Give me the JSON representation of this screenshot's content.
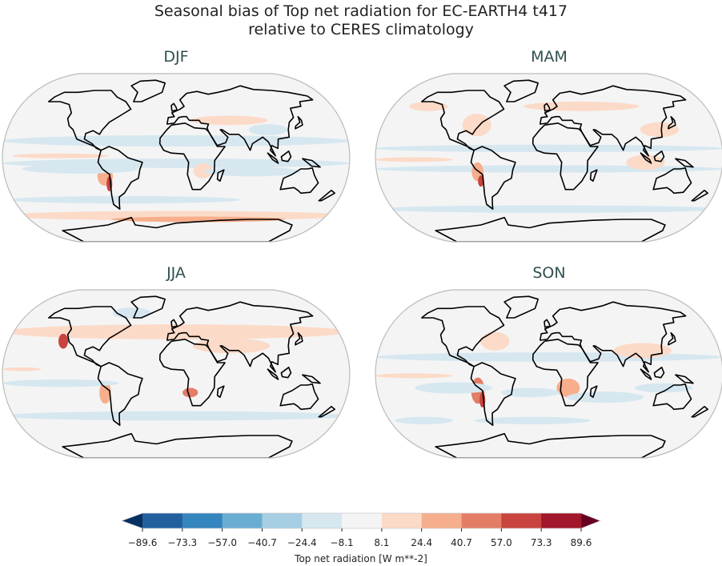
{
  "title_line1": "Seasonal bias of Top net radiation for EC-EARTH4 t417",
  "title_line2": "relative to CERES climatology",
  "panels": [
    {
      "season": "DJF"
    },
    {
      "season": "MAM"
    },
    {
      "season": "JJA"
    },
    {
      "season": "SON"
    }
  ],
  "chart_data": {
    "type": "map",
    "projection": "robinson",
    "colorbar": {
      "label": "Top net radiation [W m**-2]",
      "ticks": [
        "−89.6",
        "−73.3",
        "−57.0",
        "−40.7",
        "−24.4",
        "−8.1",
        "8.1",
        "24.4",
        "40.7",
        "57.0",
        "73.3",
        "89.6"
      ],
      "levels": [
        -89.6,
        -73.3,
        -57.0,
        -40.7,
        -24.4,
        -8.1,
        8.1,
        24.4,
        40.7,
        57.0,
        73.3,
        89.6
      ],
      "extend": "both",
      "colors": [
        "#215f9f",
        "#3585bf",
        "#6aadd3",
        "#a6cfe4",
        "#d6e7f0",
        "#f4f4f4",
        "#fcdac8",
        "#f6ae8c",
        "#e47d66",
        "#c9443f",
        "#a2172b"
      ],
      "under_color": "#053061",
      "over_color": "#67001f",
      "orientation": "horizontal"
    }
  }
}
